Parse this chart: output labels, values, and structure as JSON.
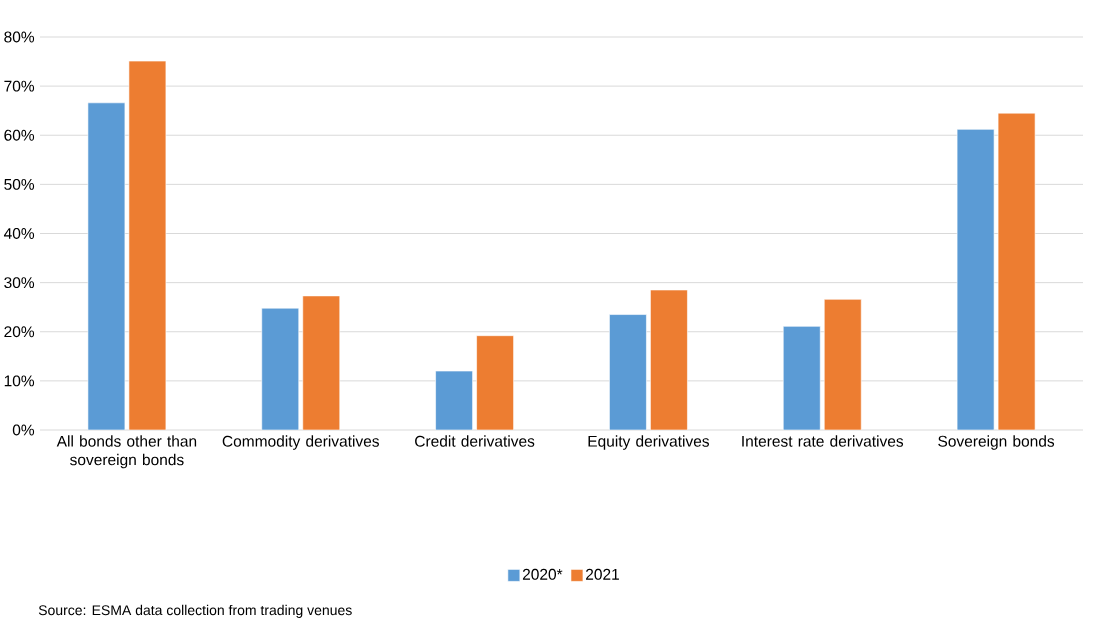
{
  "chart_data": {
    "type": "bar",
    "categories": [
      "All bonds other than sovereign bonds",
      "Commodity derivatives",
      "Credit derivatives",
      "Equity derivatives",
      "Interest rate derivatives",
      "Sovereign bonds"
    ],
    "series": [
      {
        "name": "2020*",
        "color": "#5b9bd5",
        "values": [
          66.6,
          24.8,
          12.0,
          23.5,
          21.1,
          61.2
        ]
      },
      {
        "name": "2021",
        "color": "#ed7d31",
        "values": [
          75.1,
          27.3,
          19.2,
          28.5,
          26.6,
          64.5
        ]
      }
    ],
    "ylim": [
      0,
      80
    ],
    "yticks": [
      {
        "value": 0,
        "label": "0%"
      },
      {
        "value": 10,
        "label": "10%"
      },
      {
        "value": 20,
        "label": "20%"
      },
      {
        "value": 30,
        "label": "30%"
      },
      {
        "value": 40,
        "label": "40%"
      },
      {
        "value": 50,
        "label": "50%"
      },
      {
        "value": 60,
        "label": "60%"
      },
      {
        "value": 70,
        "label": "70%"
      },
      {
        "value": 80,
        "label": "80%"
      }
    ],
    "grid": "y",
    "legend": "bottom",
    "annotations": [
      "Source: ESMA data collection from trading venues"
    ]
  }
}
